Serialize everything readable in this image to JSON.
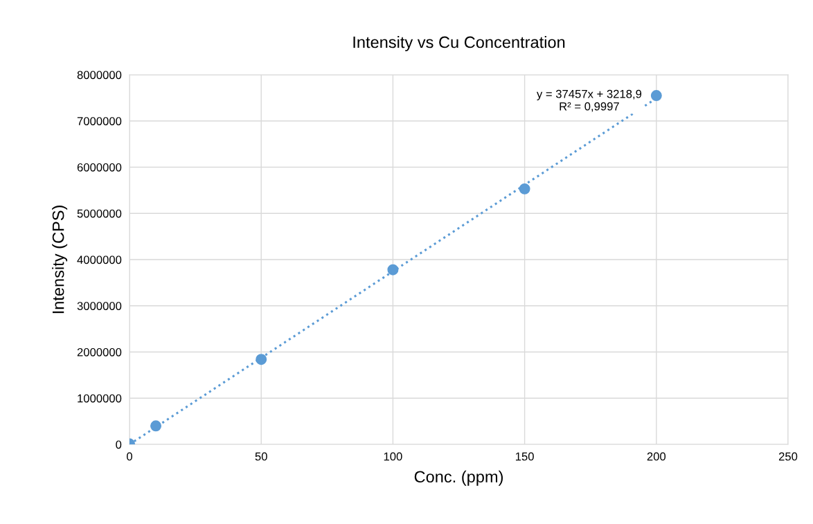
{
  "chart_data": {
    "type": "scatter",
    "title": "Intensity vs Cu Concentration",
    "xlabel": "Conc. (ppm)",
    "ylabel": "Intensity (CPS)",
    "series": [
      {
        "color": "#5b9bd5",
        "marker": "circle",
        "x": [
          0,
          10,
          50,
          100,
          150,
          200
        ],
        "values": [
          10000,
          400000,
          1840000,
          3780000,
          5530000,
          7550000
        ]
      },
      {
        "type": "line",
        "color": "#5b9bd5",
        "marker": "none",
        "line_style": "dotted",
        "x": [
          0,
          200
        ],
        "values": [
          0,
          7490000
        ]
      }
    ],
    "annotations": [
      "y = 37457x + 3218,9\nR² = 0,9997"
    ],
    "xlim": [
      0,
      250
    ],
    "xticks": [
      0,
      50,
      100,
      150,
      200,
      250
    ],
    "ylim": [
      0,
      8000000
    ],
    "yticks": [
      0,
      1000000,
      2000000,
      3000000,
      4000000,
      5000000,
      6000000,
      7000000,
      8000000
    ],
    "grid": true,
    "legend": false
  }
}
